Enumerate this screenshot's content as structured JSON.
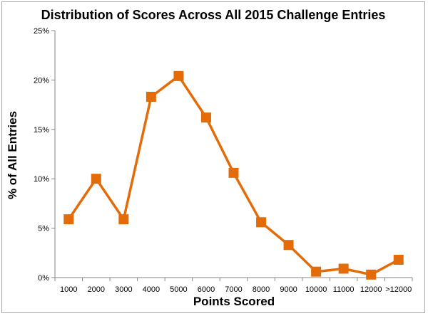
{
  "chart_data": {
    "type": "line",
    "title": "Distribution of Scores Across All 2015 Challenge Entries",
    "xlabel": "Points Scored",
    "ylabel": "% of All Entries",
    "categories": [
      "1000",
      "2000",
      "3000",
      "4000",
      "5000",
      "6000",
      "7000",
      "8000",
      "9000",
      "10000",
      "11000",
      "12000",
      ">12000"
    ],
    "series": [
      {
        "values": [
          5.9,
          10.0,
          5.9,
          18.3,
          20.4,
          16.2,
          10.6,
          5.6,
          3.3,
          0.6,
          0.9,
          0.3,
          1.8
        ]
      }
    ],
    "ylim": [
      0,
      25
    ],
    "yticks": [
      "0%",
      "5%",
      "10%",
      "15%",
      "20%",
      "25%"
    ],
    "grid": false,
    "legend": "none",
    "line_color": "#e36c09",
    "marker": "square"
  }
}
